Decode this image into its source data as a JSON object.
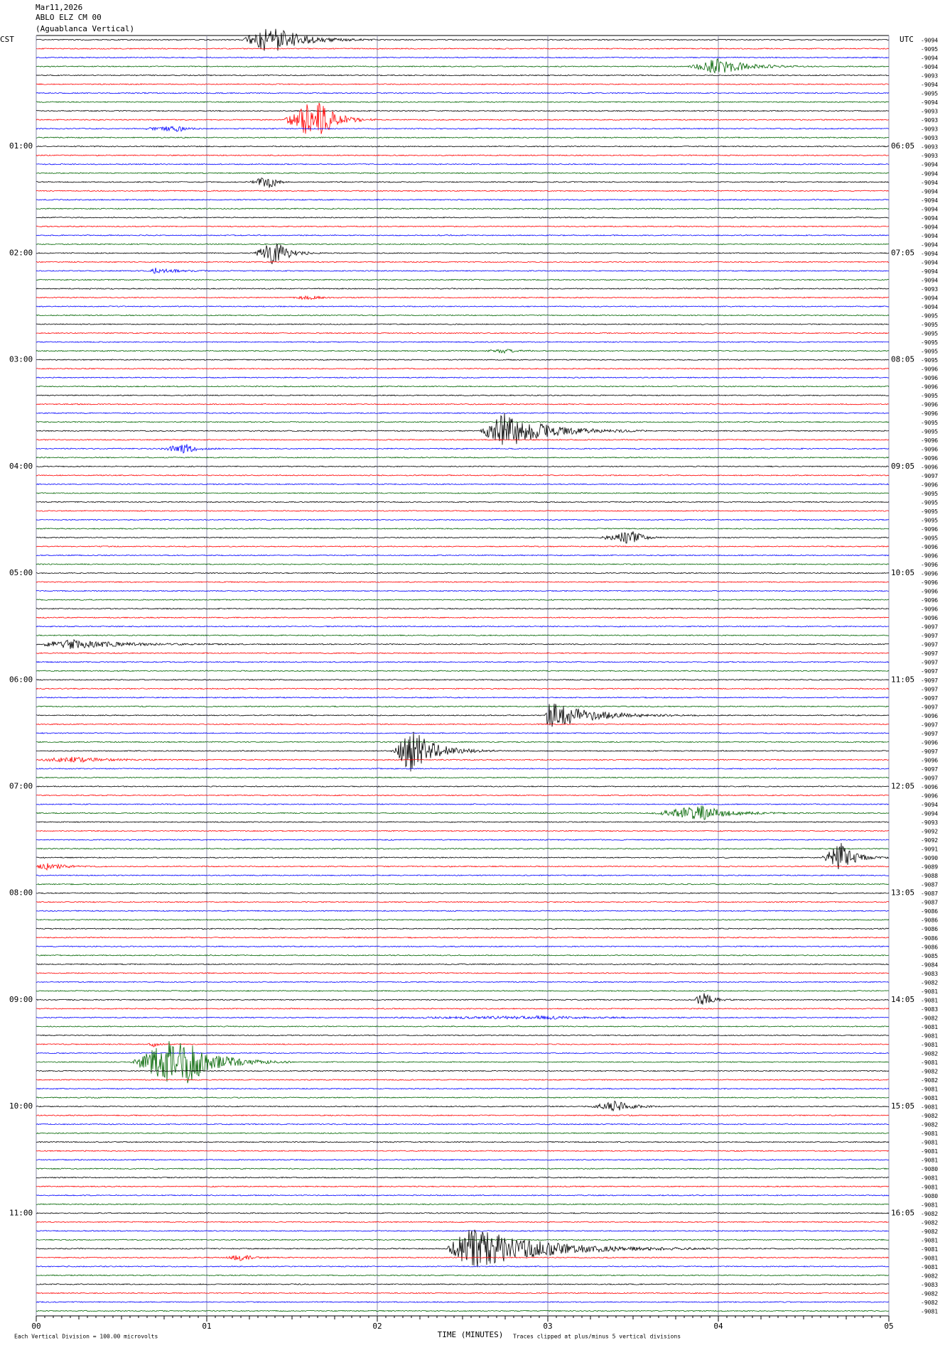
{
  "chart_data": {
    "type": "helicorder",
    "header": [
      "Mar11,2026",
      "ABLO ELZ CM 00",
      "(Aguablanca Vertical)"
    ],
    "left_zone": "CST",
    "right_zone": "UTC",
    "left_labels": [
      "01:00",
      "02:00",
      "03:00",
      "04:00",
      "05:00",
      "06:00",
      "07:00",
      "08:00",
      "09:00",
      "10:00",
      "11:00"
    ],
    "right_labels": [
      "06:05",
      "07:05",
      "08:05",
      "09:05",
      "10:05",
      "11:05",
      "12:05",
      "13:05",
      "14:05",
      "15:05",
      "16:05"
    ],
    "trace_labels": [
      -9094,
      -9095,
      -9094,
      -9094,
      -9093,
      -9094,
      -9095,
      -9094,
      -9093,
      -9093,
      -9093,
      -9093,
      -9093,
      -9093,
      -9094,
      -9094,
      -9094,
      -9094,
      -9094,
      -9094,
      -9094,
      -9094,
      -9094,
      -9094,
      -9094,
      -9094,
      -9094,
      -9094,
      -9093,
      -9094,
      -9094,
      -9095,
      -9095,
      -9095,
      -9095,
      -9095,
      -9095,
      -9096,
      -9096,
      -9096,
      -9095,
      -9096,
      -9096,
      -9095,
      -9095,
      -9096,
      -9096,
      -9096,
      -9096,
      -9097,
      -9096,
      -9095,
      -9095,
      -9095,
      -9095,
      -9096,
      -9095,
      -9096,
      -9096,
      -9096,
      -9096,
      -9096,
      -9096,
      -9096,
      -9096,
      -9096,
      -9097,
      -9097,
      -9097,
      -9097,
      -9097,
      -9097,
      -9097,
      -9097,
      -9097,
      -9097,
      -9096,
      -9097,
      -9097,
      -9096,
      -9097,
      -9096,
      -9097,
      -9097,
      -9096,
      -9096,
      -9094,
      -9094,
      -9093,
      -9092,
      -9092,
      -9091,
      -9090,
      -9089,
      -9088,
      -9087,
      -9087,
      -9087,
      -9086,
      -9086,
      -9086,
      -9086,
      -9086,
      -9085,
      -9084,
      -9083,
      -9082,
      -9081,
      -9081,
      -9083,
      -9082,
      -9081,
      -9081,
      -9081,
      -9082,
      -9081,
      -9082,
      -9082,
      -9081,
      -9081,
      -9081,
      -9082,
      -9082,
      -9081,
      -9081,
      -9081,
      -9081,
      -9080,
      -9081,
      -9081,
      -9080,
      -9081,
      -9082,
      -9082,
      -9082,
      -9081,
      -9081,
      -9081,
      -9081,
      -9082,
      -9083,
      -9082,
      -9082,
      -9081
    ],
    "colors": [
      "#000000",
      "#ff0000",
      "#0000ff",
      "#006400"
    ],
    "xlim": [
      0,
      5
    ],
    "xticks": [
      {
        "value": 0,
        "label": "00"
      },
      {
        "value": 1,
        "label": "01"
      },
      {
        "value": 2,
        "label": "02"
      },
      {
        "value": 3,
        "label": "03"
      },
      {
        "value": 4,
        "label": "04"
      },
      {
        "value": 5,
        "label": "05"
      }
    ],
    "xlabel": "TIME (MINUTES)",
    "footer_left": "Each Vertical Division =  100.00 microvolts",
    "footer_right": "Traces clipped at plus/minus 5 vertical divisions",
    "events": [
      {
        "trace": 0,
        "start": 1.2,
        "peak": 1.38,
        "end": 2.0,
        "amplitude": 1.6
      },
      {
        "trace": 3,
        "start": 3.82,
        "peak": 4.0,
        "end": 4.6,
        "amplitude": 0.9
      },
      {
        "trace": 9,
        "start": 1.45,
        "peak": 1.65,
        "end": 2.0,
        "amplitude": 2.5
      },
      {
        "trace": 10,
        "start": 0.6,
        "peak": 0.85,
        "end": 1.0,
        "amplitude": 0.3
      },
      {
        "trace": 16,
        "start": 1.25,
        "peak": 1.38,
        "end": 1.5,
        "amplitude": 0.8
      },
      {
        "trace": 24,
        "start": 1.27,
        "peak": 1.4,
        "end": 1.7,
        "amplitude": 1.4
      },
      {
        "trace": 26,
        "start": 0.65,
        "peak": 0.7,
        "end": 1.15,
        "amplitude": 0.3
      },
      {
        "trace": 29,
        "start": 1.5,
        "peak": 1.6,
        "end": 1.8,
        "amplitude": 0.25
      },
      {
        "trace": 35,
        "start": 2.6,
        "peak": 2.75,
        "end": 3.0,
        "amplitude": 0.2
      },
      {
        "trace": 44,
        "start": 2.6,
        "peak": 2.75,
        "end": 3.6,
        "amplitude": 2.0
      },
      {
        "trace": 46,
        "start": 0.72,
        "peak": 0.88,
        "end": 1.1,
        "amplitude": 0.5
      },
      {
        "trace": 56,
        "start": 3.3,
        "peak": 3.5,
        "end": 3.7,
        "amplitude": 0.8
      },
      {
        "trace": 68,
        "start": 0.0,
        "peak": 0.2,
        "end": 1.3,
        "amplitude": 0.5
      },
      {
        "trace": 76,
        "start": 2.98,
        "peak": 3.0,
        "end": 3.9,
        "amplitude": 1.6
      },
      {
        "trace": 80,
        "start": 2.08,
        "peak": 2.2,
        "end": 2.7,
        "amplitude": 2.5
      },
      {
        "trace": 81,
        "start": 0.0,
        "peak": 0.2,
        "end": 1.0,
        "amplitude": 0.3
      },
      {
        "trace": 87,
        "start": 3.6,
        "peak": 3.9,
        "end": 4.5,
        "amplitude": 0.8
      },
      {
        "trace": 92,
        "start": 4.6,
        "peak": 4.72,
        "end": 5.0,
        "amplitude": 1.6
      },
      {
        "trace": 93,
        "start": 0.0,
        "peak": 0.05,
        "end": 0.45,
        "amplitude": 0.4
      },
      {
        "trace": 108,
        "start": 3.85,
        "peak": 3.92,
        "end": 4.1,
        "amplitude": 0.8
      },
      {
        "trace": 110,
        "start": 2.0,
        "peak": 3.0,
        "end": 4.2,
        "amplitude": 0.15
      },
      {
        "trace": 113,
        "start": 0.65,
        "peak": 0.7,
        "end": 0.8,
        "amplitude": 0.3
      },
      {
        "trace": 115,
        "start": 0.55,
        "peak": 0.85,
        "end": 1.5,
        "amplitude": 3.0
      },
      {
        "trace": 120,
        "start": 3.25,
        "peak": 3.4,
        "end": 3.75,
        "amplitude": 0.6
      },
      {
        "trace": 136,
        "start": 2.4,
        "peak": 2.55,
        "end": 4.0,
        "amplitude": 2.4
      },
      {
        "trace": 137,
        "start": 1.1,
        "peak": 1.2,
        "end": 1.5,
        "amplitude": 0.3
      }
    ]
  }
}
